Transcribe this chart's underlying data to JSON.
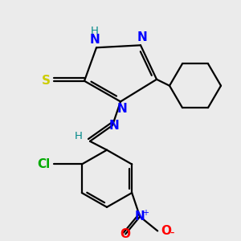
{
  "background_color": "#ebebeb",
  "colors": {
    "N": "#0000ff",
    "S": "#cccc00",
    "Cl": "#00aa00",
    "O": "#ff0000",
    "H": "#008888",
    "bond": "#000000"
  },
  "figsize": [
    3.0,
    3.0
  ],
  "dpi": 100
}
